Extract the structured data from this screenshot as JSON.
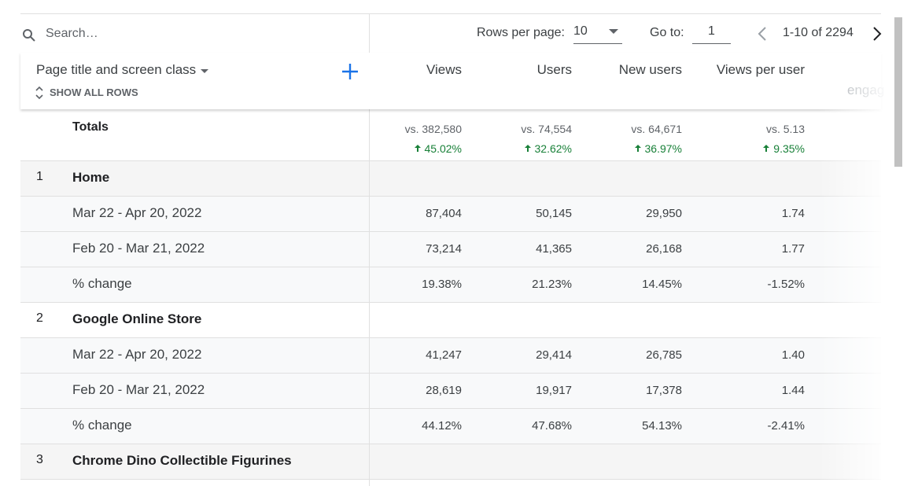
{
  "toolbar": {
    "search_placeholder": "Search…",
    "rows_per_page_label": "Rows per page:",
    "rows_per_page": "10",
    "goto_label": "Go to:",
    "goto": "1",
    "range": "1-10 of 2294"
  },
  "table": {
    "dimension_header": "Page title and screen class",
    "show_all_rows": "SHOW ALL ROWS",
    "columns": [
      "Views",
      "Users",
      "New users",
      "Views per user",
      "engag"
    ],
    "totals": {
      "label": "Totals",
      "comparisons": [
        "vs. 382,580",
        "vs. 74,554",
        "vs. 64,671",
        "vs. 5.13"
      ],
      "changes": [
        "45.02%",
        "32.62%",
        "36.97%",
        "9.35%"
      ]
    },
    "groups": [
      {
        "index": "1",
        "title": "Home",
        "rows": [
          {
            "label": "Mar 22 - Apr 20, 2022",
            "values": [
              "87,404",
              "50,145",
              "29,950",
              "1.74"
            ]
          },
          {
            "label": "Feb 20 - Mar 21, 2022",
            "values": [
              "73,214",
              "41,365",
              "26,168",
              "1.77"
            ]
          },
          {
            "label": "% change",
            "values": [
              "19.38%",
              "21.23%",
              "14.45%",
              "-1.52%"
            ]
          }
        ]
      },
      {
        "index": "2",
        "title": "Google Online Store",
        "rows": [
          {
            "label": "Mar 22 - Apr 20, 2022",
            "values": [
              "41,247",
              "29,414",
              "26,785",
              "1.40"
            ]
          },
          {
            "label": "Feb 20 - Mar 21, 2022",
            "values": [
              "28,619",
              "19,917",
              "17,378",
              "1.44"
            ]
          },
          {
            "label": "% change",
            "values": [
              "44.12%",
              "47.68%",
              "54.13%",
              "-2.41%"
            ]
          }
        ]
      },
      {
        "index": "3",
        "title": "Chrome Dino Collectible Figurines",
        "rows": []
      }
    ]
  }
}
